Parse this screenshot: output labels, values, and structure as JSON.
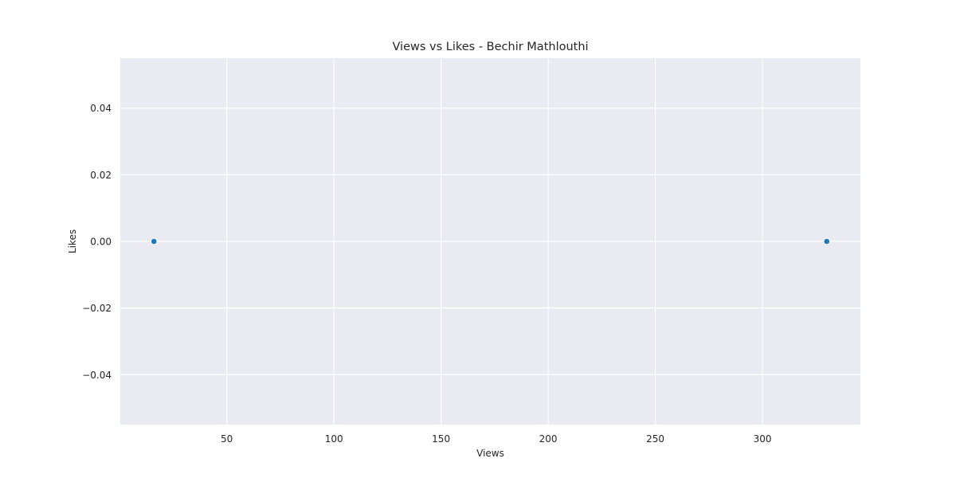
{
  "chart_data": {
    "type": "scatter",
    "title": "Views vs Likes - Bechir Mathlouthi",
    "xlabel": "Views",
    "ylabel": "Likes",
    "x": [
      16,
      330
    ],
    "y": [
      0,
      0
    ],
    "xlim": [
      0.3,
      345.7
    ],
    "ylim": [
      -0.055,
      0.055
    ],
    "xticks": [
      50,
      100,
      150,
      200,
      250,
      300
    ],
    "xtick_labels": [
      "50",
      "100",
      "150",
      "200",
      "250",
      "300"
    ],
    "yticks": [
      -0.04,
      -0.02,
      0.0,
      0.02,
      0.04
    ],
    "ytick_labels": [
      "−0.04",
      "−0.02",
      "0.00",
      "0.02",
      "0.04"
    ],
    "grid": true,
    "legend": "none",
    "colors": {
      "plot_background": "#eaeaf2",
      "grid": "#ffffff",
      "marker": "#1f77b4",
      "text": "#262626"
    }
  }
}
